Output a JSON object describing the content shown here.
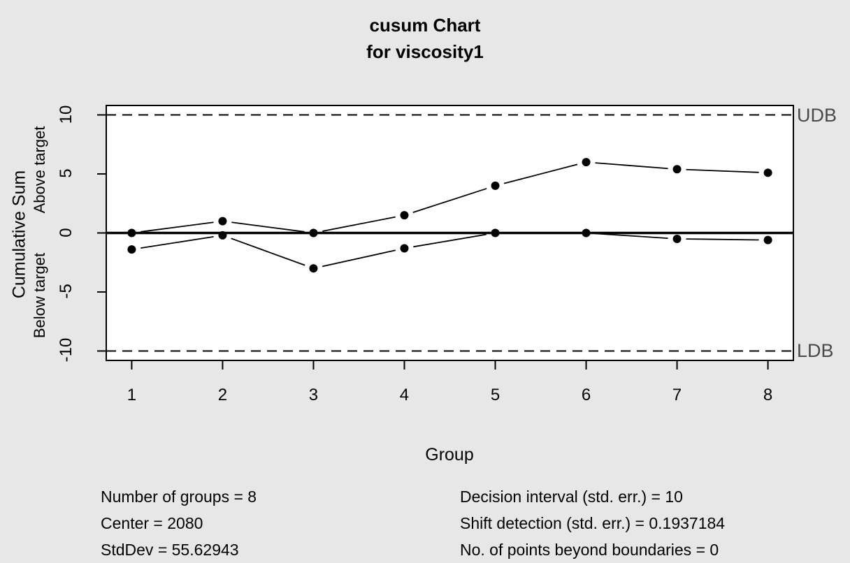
{
  "title": {
    "line1": "cusum Chart",
    "line2": "for viscosity1"
  },
  "chart_data": {
    "type": "line",
    "title": "cusum Chart for viscosity1",
    "xlabel": "Group",
    "ylabel": "Cumulative Sum",
    "ylabel_above": "Above target",
    "ylabel_below": "Below target",
    "x": [
      1,
      2,
      3,
      4,
      5,
      6,
      7,
      8
    ],
    "series": [
      {
        "name": "cusum-above-target",
        "values": [
          0,
          1.0,
          0,
          1.5,
          4.0,
          6.0,
          5.4,
          5.1
        ]
      },
      {
        "name": "cusum-below-target",
        "values": [
          -1.4,
          -0.2,
          -3.0,
          -1.3,
          0,
          0,
          -0.5,
          -0.6
        ]
      }
    ],
    "x_ticks": [
      1,
      2,
      3,
      4,
      5,
      6,
      7,
      8
    ],
    "y_ticks": [
      -10,
      -5,
      0,
      5,
      10
    ],
    "xlim": [
      0.72,
      8.28
    ],
    "ylim": [
      -10.8,
      10.8
    ],
    "center_line_value": 0,
    "boundaries": {
      "upper": {
        "value": 10,
        "label": "UDB"
      },
      "lower": {
        "value": -10,
        "label": "LDB"
      }
    },
    "grid": false,
    "legend": null
  },
  "stats": {
    "left": [
      "Number of groups = 8",
      "Center = 2080",
      "StdDev = 55.62943"
    ],
    "right": [
      "Decision interval (std. err.) = 10",
      "Shift detection (std. err.) = 0.1937184",
      "No. of points beyond boundaries = 0"
    ]
  },
  "colors": {
    "background": "#e7e7e7",
    "plot_background": "#ffffff",
    "line": "#000000",
    "boundary_label": "#4a4a4a"
  }
}
